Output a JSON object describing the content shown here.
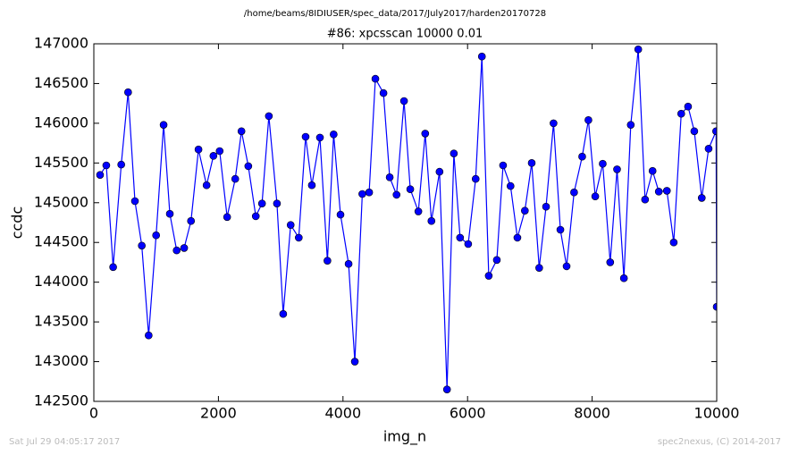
{
  "chart_data": {
    "type": "line",
    "suptitle": "/home/beams/8IDIUSER/spec_data/2017/July2017/harden20170728",
    "title": "#86: xpcsscan 10000 0.01",
    "x_label": "img_n",
    "y_label": "ccdc",
    "footer_left": "Sat Jul 29 04:05:17 2017",
    "footer_right": "spec2nexus, (C) 2014-2017",
    "x": [
      100,
      200,
      310,
      440,
      550,
      660,
      770,
      880,
      1000,
      1120,
      1220,
      1330,
      1450,
      1560,
      1680,
      1810,
      1920,
      2020,
      2140,
      2270,
      2370,
      2480,
      2600,
      2700,
      2810,
      2940,
      3040,
      3160,
      3290,
      3400,
      3500,
      3630,
      3750,
      3850,
      3960,
      4090,
      4190,
      4310,
      4420,
      4520,
      4650,
      4750,
      4860,
      4980,
      5080,
      5210,
      5320,
      5420,
      5550,
      5670,
      5780,
      5880,
      6010,
      6130,
      6230,
      6340,
      6470,
      6570,
      6690,
      6800,
      6920,
      7030,
      7150,
      7260,
      7380,
      7490,
      7590,
      7710,
      7840,
      7940,
      8050,
      8170,
      8290,
      8400,
      8510,
      8620,
      8740,
      8850,
      8970,
      9070,
      9200,
      9310,
      9430,
      9540,
      9640,
      9760,
      9870,
      9990,
      10000
    ],
    "series": [
      {
        "name": "ccdc",
        "color": "#0000ff",
        "values": [
          145350,
          145470,
          144190,
          145480,
          146390,
          145020,
          144460,
          143330,
          144590,
          145980,
          144860,
          144400,
          144430,
          144770,
          145670,
          145220,
          145590,
          145650,
          144820,
          145300,
          145900,
          145460,
          144830,
          144990,
          146090,
          144990,
          143600,
          144720,
          144560,
          145830,
          145220,
          145820,
          144270,
          145860,
          144850,
          144230,
          143000,
          145110,
          145130,
          146560,
          146380,
          145320,
          145100,
          146280,
          145170,
          144890,
          145870,
          144770,
          145390,
          142650,
          145620,
          144560,
          144480,
          145300,
          146840,
          144080,
          144280,
          145470,
          145210,
          144560,
          144900,
          145500,
          144180,
          144950,
          146000,
          144660,
          144200,
          145130,
          145580,
          146040,
          145080,
          145490,
          144250,
          145420,
          144050,
          145980,
          146930,
          145040,
          145400,
          145140,
          145150,
          144500,
          146120,
          146210,
          145900,
          145060,
          145680,
          145900,
          143690
        ]
      }
    ],
    "xlim": [
      0,
      10000
    ],
    "ylim": [
      142500,
      147000
    ],
    "xticks": [
      0,
      2000,
      4000,
      6000,
      8000,
      10000
    ],
    "yticks": [
      142500,
      143000,
      143500,
      144000,
      144500,
      145000,
      145500,
      146000,
      146500,
      147000
    ]
  }
}
